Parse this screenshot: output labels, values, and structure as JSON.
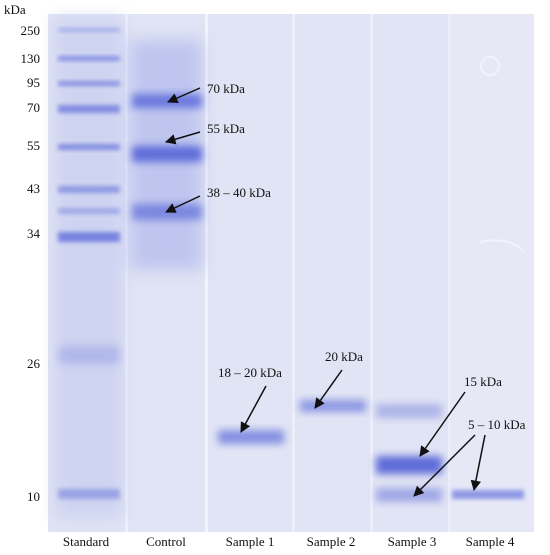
{
  "marker_unit": "kDa",
  "marker_ladder": [
    "250",
    "130",
    "95",
    "70",
    "55",
    "43",
    "34",
    "26",
    "10"
  ],
  "lanes": [
    "Standard",
    "Control",
    "Sample 1",
    "Sample 2",
    "Sample 3",
    "Sample 4"
  ],
  "annotations": {
    "control_70": "70 kDa",
    "control_55": "55 kDa",
    "control_38": "38 – 40 kDa",
    "sample1": "18 – 20 kDa",
    "sample2": "20 kDa",
    "sample3_15": "15 kDa",
    "sample34_5_10": "5 – 10 kDa"
  },
  "colors": {
    "gel_background": "#dfe3f4",
    "band": "#4f5fd6",
    "arrow": "#111111"
  }
}
